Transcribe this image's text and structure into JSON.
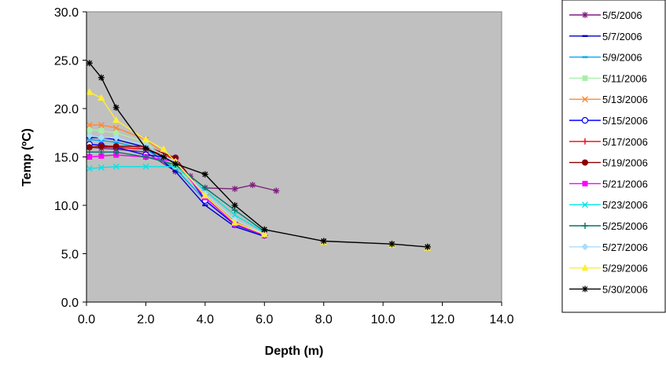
{
  "chart_data": {
    "type": "line",
    "title": "",
    "xlabel": "Depth (m)",
    "ylabel": "Temp (ºC)",
    "xlim": [
      0,
      14
    ],
    "ylim": [
      0,
      30
    ],
    "x_ticks": [
      "0.0",
      "2.0",
      "4.0",
      "6.0",
      "8.0",
      "10.0",
      "12.0",
      "14.0"
    ],
    "y_ticks": [
      "0.0",
      "5.0",
      "10.0",
      "15.0",
      "20.0",
      "25.0",
      "30.0"
    ],
    "grid": false,
    "legend_position": "right",
    "series": [
      {
        "name": "5/5/2006",
        "color": "#7f1f7f",
        "marker": "asterisk",
        "points": [
          [
            0.1,
            16.0
          ],
          [
            0.5,
            15.9
          ],
          [
            1.0,
            15.8
          ],
          [
            2.0,
            15.5
          ],
          [
            3.0,
            13.5
          ],
          [
            3.5,
            13.0
          ],
          [
            4.0,
            11.8
          ],
          [
            5.0,
            11.7
          ],
          [
            5.6,
            12.1
          ],
          [
            6.4,
            11.5
          ]
        ]
      },
      {
        "name": "5/7/2006",
        "color": "#0000cc",
        "marker": "dash",
        "points": [
          [
            0.1,
            17.0
          ],
          [
            0.5,
            17.0
          ],
          [
            1.0,
            16.8
          ],
          [
            2.0,
            16.0
          ],
          [
            3.0,
            13.5
          ],
          [
            4.0,
            10.0
          ],
          [
            5.0,
            7.8
          ],
          [
            6.0,
            6.8
          ]
        ]
      },
      {
        "name": "5/9/2006",
        "color": "#00aaee",
        "marker": "dash",
        "points": [
          [
            0.1,
            16.8
          ],
          [
            0.5,
            16.7
          ],
          [
            1.0,
            16.5
          ],
          [
            2.0,
            15.8
          ],
          [
            3.0,
            13.8
          ],
          [
            4.0,
            10.5
          ],
          [
            5.0,
            8.0
          ],
          [
            6.0,
            6.9
          ]
        ]
      },
      {
        "name": "5/11/2006",
        "color": "#aaeeaa",
        "marker": "square",
        "points": [
          [
            0.1,
            17.8
          ],
          [
            0.5,
            17.7
          ],
          [
            1.0,
            17.5
          ],
          [
            2.0,
            16.5
          ],
          [
            3.0,
            14.0
          ],
          [
            4.0,
            11.0
          ],
          [
            5.0,
            8.5
          ],
          [
            6.0,
            7.0
          ]
        ]
      },
      {
        "name": "5/13/2006",
        "color": "#ff8833",
        "marker": "x",
        "points": [
          [
            0.1,
            18.3
          ],
          [
            0.5,
            18.3
          ],
          [
            1.0,
            18.0
          ],
          [
            2.0,
            16.8
          ],
          [
            3.0,
            14.5
          ],
          [
            4.0,
            11.0
          ],
          [
            5.0,
            8.3
          ],
          [
            6.0,
            7.0
          ]
        ]
      },
      {
        "name": "5/15/2006",
        "color": "#0000ff",
        "marker": "open-circle",
        "points": [
          [
            0.1,
            16.3
          ],
          [
            0.5,
            16.2
          ],
          [
            1.0,
            16.0
          ],
          [
            2.0,
            15.2
          ],
          [
            3.0,
            14.9
          ],
          [
            4.0,
            10.5
          ],
          [
            5.0,
            8.0
          ],
          [
            6.0,
            6.9
          ]
        ]
      },
      {
        "name": "5/17/2006",
        "color": "#ff0000",
        "marker": "plus",
        "points": [
          [
            0.1,
            16.0
          ],
          [
            0.5,
            16.0
          ],
          [
            1.0,
            16.0
          ],
          [
            2.0,
            15.8
          ],
          [
            3.0,
            14.8
          ],
          [
            4.0,
            11.0
          ],
          [
            5.0,
            8.1
          ],
          [
            6.0,
            6.9
          ]
        ]
      },
      {
        "name": "5/19/2006",
        "color": "#880000",
        "marker": "filled-circle",
        "points": [
          [
            0.1,
            16.0
          ],
          [
            0.5,
            16.1
          ],
          [
            1.0,
            16.1
          ],
          [
            2.0,
            16.1
          ],
          [
            3.0,
            14.9
          ],
          [
            4.0,
            11.0
          ],
          [
            5.0,
            8.2
          ],
          [
            6.0,
            6.9
          ]
        ]
      },
      {
        "name": "5/21/2006",
        "color": "#ff00ff",
        "marker": "square",
        "points": [
          [
            0.1,
            15.0
          ],
          [
            0.5,
            15.1
          ],
          [
            1.0,
            15.2
          ],
          [
            2.0,
            15.0
          ],
          [
            3.0,
            14.5
          ],
          [
            4.0,
            10.8
          ],
          [
            5.0,
            8.1
          ],
          [
            6.0,
            6.9
          ]
        ]
      },
      {
        "name": "5/23/2006",
        "color": "#00e5e5",
        "marker": "x",
        "points": [
          [
            0.1,
            13.8
          ],
          [
            0.5,
            13.9
          ],
          [
            1.0,
            14.0
          ],
          [
            2.0,
            14.0
          ],
          [
            3.0,
            14.0
          ],
          [
            4.0,
            11.5
          ],
          [
            5.0,
            9.0
          ],
          [
            6.0,
            7.2
          ]
        ]
      },
      {
        "name": "5/25/2006",
        "color": "#007766",
        "marker": "plus",
        "points": [
          [
            0.1,
            15.5
          ],
          [
            0.5,
            15.5
          ],
          [
            1.0,
            15.5
          ],
          [
            2.0,
            15.0
          ],
          [
            3.0,
            14.2
          ],
          [
            4.0,
            11.8
          ],
          [
            5.0,
            9.5
          ],
          [
            6.0,
            7.3
          ]
        ]
      },
      {
        "name": "5/27/2006",
        "color": "#aaddff",
        "marker": "diamond",
        "points": [
          [
            0.1,
            17.2
          ],
          [
            0.5,
            17.0
          ],
          [
            1.0,
            17.0
          ],
          [
            2.0,
            16.2
          ],
          [
            3.0,
            14.5
          ],
          [
            4.0,
            11.2
          ],
          [
            5.0,
            8.5
          ],
          [
            6.0,
            7.0
          ]
        ]
      },
      {
        "name": "5/29/2006",
        "color": "#ffee33",
        "marker": "triangle",
        "points": [
          [
            0.1,
            21.7
          ],
          [
            0.5,
            21.1
          ],
          [
            1.0,
            18.8
          ],
          [
            2.0,
            16.8
          ],
          [
            2.6,
            15.8
          ],
          [
            3.0,
            14.5
          ],
          [
            4.0,
            11.0
          ],
          [
            5.0,
            8.2
          ],
          [
            6.0,
            7.0
          ]
        ]
      },
      {
        "name": "5/30/2006",
        "color": "#000000",
        "marker": "asterisk",
        "points": [
          [
            0.1,
            24.7
          ],
          [
            0.5,
            23.2
          ],
          [
            1.0,
            20.1
          ],
          [
            2.0,
            15.9
          ],
          [
            2.6,
            15.0
          ],
          [
            3.0,
            14.3
          ],
          [
            4.0,
            13.2
          ],
          [
            5.0,
            10.0
          ],
          [
            6.0,
            7.5
          ],
          [
            8.0,
            6.3
          ],
          [
            10.3,
            6.0
          ],
          [
            11.5,
            5.7
          ]
        ]
      }
    ],
    "deep_points": [
      [
        8.0,
        6.2
      ],
      [
        10.3,
        5.9
      ],
      [
        11.5,
        5.6
      ]
    ]
  }
}
